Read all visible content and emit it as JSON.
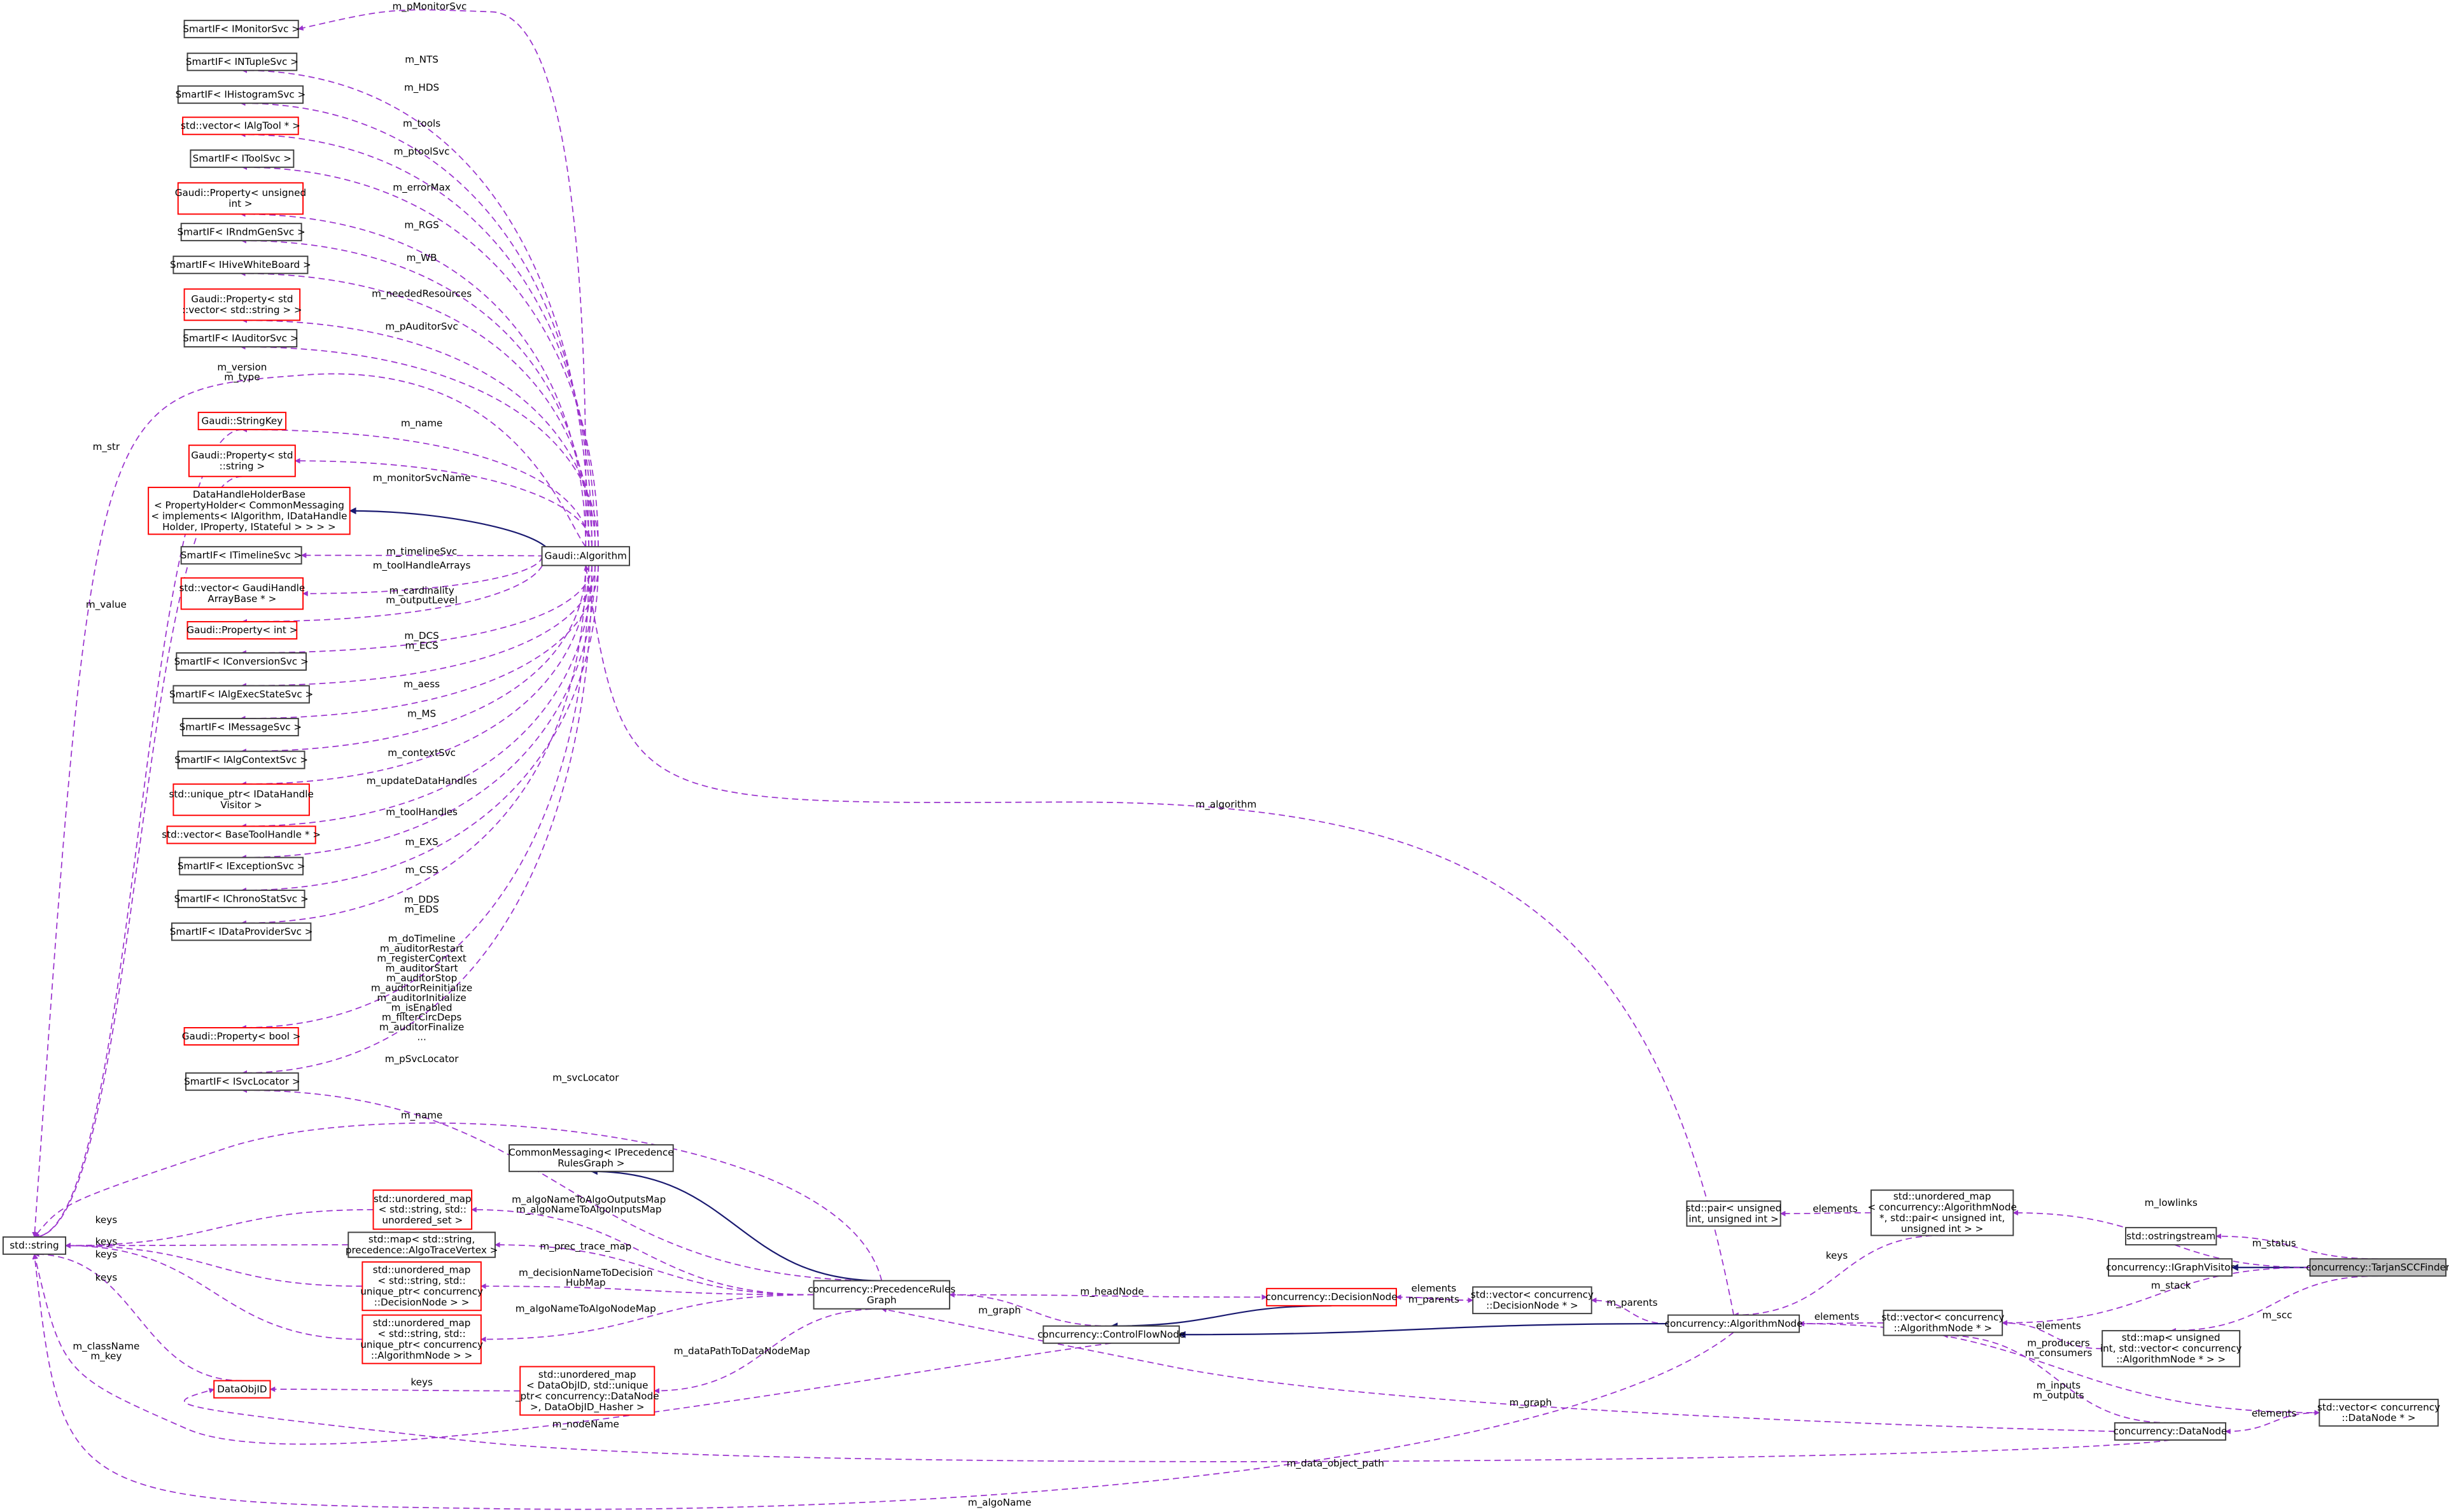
{
  "colors": {
    "member_edge": "#9a32cd",
    "inherit_edge": "#191970",
    "undocumented_border": "#ff0000",
    "documented_border": "#404040",
    "focus_fill": "#bfbfbf"
  },
  "nodes": [
    {
      "id": "mon",
      "lines": [
        "SmartIF< IMonitorSvc >"
      ],
      "style": "black"
    },
    {
      "id": "ntuple",
      "lines": [
        "SmartIF< INTupleSvc >"
      ],
      "style": "black"
    },
    {
      "id": "hist",
      "lines": [
        "SmartIF< IHistogramSvc >"
      ],
      "style": "black"
    },
    {
      "id": "algtool",
      "lines": [
        "std::vector< IAlgTool * >"
      ],
      "style": "red"
    },
    {
      "id": "toolsvc",
      "lines": [
        "SmartIF< IToolSvc >"
      ],
      "style": "black"
    },
    {
      "id": "propuint",
      "lines": [
        "Gaudi::Property< unsigned",
        "int >"
      ],
      "style": "red"
    },
    {
      "id": "rndm",
      "lines": [
        "SmartIF< IRndmGenSvc >"
      ],
      "style": "black"
    },
    {
      "id": "hive",
      "lines": [
        "SmartIF< IHiveWhiteBoard >"
      ],
      "style": "black"
    },
    {
      "id": "propvec",
      "lines": [
        "Gaudi::Property< std",
        "::vector< std::string > >"
      ],
      "style": "red"
    },
    {
      "id": "auditor",
      "lines": [
        "SmartIF< IAuditorSvc >"
      ],
      "style": "black"
    },
    {
      "id": "strkey",
      "lines": [
        "Gaudi::StringKey"
      ],
      "style": "red"
    },
    {
      "id": "propstr",
      "lines": [
        "Gaudi::Property< std",
        "::string >"
      ],
      "style": "red"
    },
    {
      "id": "dhhb",
      "lines": [
        "DataHandleHolderBase",
        "< PropertyHolder< CommonMessaging",
        "< implements< IAlgorithm, IDataHandle",
        "Holder, IProperty, IStateful > > > >"
      ],
      "style": "red"
    },
    {
      "id": "timeline",
      "lines": [
        "SmartIF< ITimelineSvc >"
      ],
      "style": "black"
    },
    {
      "id": "gha",
      "lines": [
        "std::vector< GaudiHandle",
        "ArrayBase * >"
      ],
      "style": "red"
    },
    {
      "id": "propint",
      "lines": [
        "Gaudi::Property< int >"
      ],
      "style": "red"
    },
    {
      "id": "conv",
      "lines": [
        "SmartIF< IConversionSvc >"
      ],
      "style": "black"
    },
    {
      "id": "execstate",
      "lines": [
        "SmartIF< IAlgExecStateSvc >"
      ],
      "style": "black"
    },
    {
      "id": "msg",
      "lines": [
        "SmartIF< IMessageSvc >"
      ],
      "style": "black"
    },
    {
      "id": "ctx",
      "lines": [
        "SmartIF< IAlgContextSvc >"
      ],
      "style": "black"
    },
    {
      "id": "dhv",
      "lines": [
        "std::unique_ptr< IDataHandle",
        "Visitor >"
      ],
      "style": "red"
    },
    {
      "id": "bth",
      "lines": [
        "std::vector< BaseToolHandle * >"
      ],
      "style": "red"
    },
    {
      "id": "exc",
      "lines": [
        "SmartIF< IExceptionSvc >"
      ],
      "style": "black"
    },
    {
      "id": "chrono",
      "lines": [
        "SmartIF< IChronoStatSvc >"
      ],
      "style": "black"
    },
    {
      "id": "dps",
      "lines": [
        "SmartIF< IDataProviderSvc >"
      ],
      "style": "black"
    },
    {
      "id": "propbool",
      "lines": [
        "Gaudi::Property< bool >"
      ],
      "style": "red"
    },
    {
      "id": "svcloc",
      "lines": [
        "SmartIF< ISvcLocator >"
      ],
      "style": "black"
    },
    {
      "id": "ga",
      "lines": [
        "Gaudi::Algorithm"
      ],
      "style": "black"
    },
    {
      "id": "string",
      "lines": [
        "std::string"
      ],
      "style": "black"
    },
    {
      "id": "cm",
      "lines": [
        "CommonMessaging< IPrecedence",
        "RulesGraph >"
      ],
      "style": "black"
    },
    {
      "id": "uset",
      "lines": [
        "std::unordered_map",
        "< std::string, std::",
        "unordered_set >"
      ],
      "style": "red"
    },
    {
      "id": "trace",
      "lines": [
        "std::map< std::string,",
        "precedence::AlgoTraceVertex >"
      ],
      "style": "black"
    },
    {
      "id": "decmap",
      "lines": [
        "std::unordered_map",
        "< std::string, std::",
        "unique_ptr< concurrency",
        "::DecisionNode > >"
      ],
      "style": "red"
    },
    {
      "id": "algmap",
      "lines": [
        "std::unordered_map",
        "< std::string, std::",
        "unique_ptr< concurrency",
        "::AlgorithmNode > >"
      ],
      "style": "red"
    },
    {
      "id": "dataobjid",
      "lines": [
        "DataObjID"
      ],
      "style": "red"
    },
    {
      "id": "domap",
      "lines": [
        "std::unordered_map",
        "< DataObjID, std::unique",
        "_ptr< concurrency::DataNode",
        ">, DataObjID_Hasher >"
      ],
      "style": "red"
    },
    {
      "id": "prg",
      "lines": [
        "concurrency::PrecedenceRules",
        "Graph"
      ],
      "style": "black"
    },
    {
      "id": "decnode",
      "lines": [
        "concurrency::DecisionNode"
      ],
      "style": "red"
    },
    {
      "id": "decvec",
      "lines": [
        "std::vector< concurrency",
        "::DecisionNode * >"
      ],
      "style": "black"
    },
    {
      "id": "cfn",
      "lines": [
        "concurrency::ControlFlowNode"
      ],
      "style": "black"
    },
    {
      "id": "algnode",
      "lines": [
        "concurrency::AlgorithmNode"
      ],
      "style": "black"
    },
    {
      "id": "pair",
      "lines": [
        "std::pair< unsigned",
        "int, unsigned int >"
      ],
      "style": "black"
    },
    {
      "id": "umap",
      "lines": [
        "std::unordered_map",
        "< concurrency::AlgorithmNode",
        "*, std::pair< unsigned int,",
        "unsigned int > >"
      ],
      "style": "black"
    },
    {
      "id": "oss",
      "lines": [
        "std::ostringstream"
      ],
      "style": "black"
    },
    {
      "id": "igv",
      "lines": [
        "concurrency::IGraphVisitor"
      ],
      "style": "black"
    },
    {
      "id": "tarjan",
      "lines": [
        "concurrency::TarjanSCCFinder"
      ],
      "style": "focus"
    },
    {
      "id": "algvec",
      "lines": [
        "std::vector< concurrency",
        "::AlgorithmNode * >"
      ],
      "style": "black"
    },
    {
      "id": "mapscc",
      "lines": [
        "std::map< unsigned",
        "int, std::vector< concurrency",
        "::AlgorithmNode * > >"
      ],
      "style": "black"
    },
    {
      "id": "dnvec",
      "lines": [
        "std::vector< concurrency",
        "::DataNode * >"
      ],
      "style": "black"
    },
    {
      "id": "datanode",
      "lines": [
        "concurrency::DataNode"
      ],
      "style": "black"
    }
  ],
  "edges": [
    {
      "from": "ga",
      "to": "mon",
      "kind": "member",
      "label": [
        "m_pMonitorSvc"
      ]
    },
    {
      "from": "ga",
      "to": "ntuple",
      "kind": "member",
      "label": [
        "m_NTS"
      ]
    },
    {
      "from": "ga",
      "to": "hist",
      "kind": "member",
      "label": [
        "m_HDS"
      ]
    },
    {
      "from": "ga",
      "to": "algtool",
      "kind": "member",
      "label": [
        "m_tools"
      ]
    },
    {
      "from": "ga",
      "to": "toolsvc",
      "kind": "member",
      "label": [
        "m_ptoolSvc"
      ]
    },
    {
      "from": "ga",
      "to": "propuint",
      "kind": "member",
      "label": [
        "m_errorMax"
      ]
    },
    {
      "from": "ga",
      "to": "rndm",
      "kind": "member",
      "label": [
        "m_RGS"
      ]
    },
    {
      "from": "ga",
      "to": "hive",
      "kind": "member",
      "label": [
        "m_WB"
      ]
    },
    {
      "from": "ga",
      "to": "propvec",
      "kind": "member",
      "label": [
        "m_neededResources"
      ]
    },
    {
      "from": "ga",
      "to": "auditor",
      "kind": "member",
      "label": [
        "m_pAuditorSvc"
      ]
    },
    {
      "from": "ga",
      "to": "string",
      "kind": "member",
      "label": [
        "m_version",
        "m_type"
      ]
    },
    {
      "from": "ga",
      "to": "strkey",
      "kind": "member",
      "label": [
        "m_name"
      ]
    },
    {
      "from": "ga",
      "to": "propstr",
      "kind": "member",
      "label": [
        "m_monitorSvcName"
      ]
    },
    {
      "from": "ga",
      "to": "dhhb",
      "kind": "inherit",
      "label": []
    },
    {
      "from": "ga",
      "to": "timeline",
      "kind": "member",
      "label": [
        "m_timelineSvc"
      ]
    },
    {
      "from": "ga",
      "to": "gha",
      "kind": "member",
      "label": [
        "m_toolHandleArrays"
      ]
    },
    {
      "from": "ga",
      "to": "propint",
      "kind": "member",
      "label": [
        "m_cardinality",
        "m_outputLevel"
      ]
    },
    {
      "from": "ga",
      "to": "conv",
      "kind": "member",
      "label": [
        "m_DCS",
        "m_ECS"
      ]
    },
    {
      "from": "ga",
      "to": "execstate",
      "kind": "member",
      "label": [
        "m_aess"
      ]
    },
    {
      "from": "ga",
      "to": "msg",
      "kind": "member",
      "label": [
        "m_MS"
      ]
    },
    {
      "from": "ga",
      "to": "ctx",
      "kind": "member",
      "label": [
        "m_contextSvc"
      ]
    },
    {
      "from": "ga",
      "to": "dhv",
      "kind": "member",
      "label": [
        "m_updateDataHandles"
      ]
    },
    {
      "from": "ga",
      "to": "bth",
      "kind": "member",
      "label": [
        "m_toolHandles"
      ]
    },
    {
      "from": "ga",
      "to": "exc",
      "kind": "member",
      "label": [
        "m_EXS"
      ]
    },
    {
      "from": "ga",
      "to": "chrono",
      "kind": "member",
      "label": [
        "m_CSS"
      ]
    },
    {
      "from": "ga",
      "to": "dps",
      "kind": "member",
      "label": [
        "m_DDS",
        "m_EDS"
      ]
    },
    {
      "from": "ga",
      "to": "propbool",
      "kind": "member",
      "label": [
        "m_doTimeline",
        "m_auditorRestart",
        "m_registerContext",
        "m_auditorStart",
        "m_auditorStop",
        "m_auditorReinitialize",
        "m_auditorInitialize",
        "m_isEnabled",
        "m_filterCircDeps",
        "m_auditorFinalize",
        "..."
      ]
    },
    {
      "from": "ga",
      "to": "svcloc",
      "kind": "member",
      "label": [
        "m_pSvcLocator"
      ]
    },
    {
      "from": "strkey",
      "to": "string",
      "kind": "member",
      "label": [
        "m_str"
      ]
    },
    {
      "from": "propstr",
      "to": "string",
      "kind": "member",
      "label": [
        "m_value"
      ]
    },
    {
      "from": "prg",
      "to": "svcloc",
      "kind": "member",
      "label": [
        "m_svcLocator"
      ]
    },
    {
      "from": "prg",
      "to": "string",
      "kind": "member",
      "label": [
        "m_name"
      ]
    },
    {
      "from": "prg",
      "to": "cm",
      "kind": "inherit",
      "label": []
    },
    {
      "from": "prg",
      "to": "uset",
      "kind": "member",
      "label": [
        "m_algoNameToAlgoOutputsMap",
        "m_algoNameToAlgoInputsMap"
      ]
    },
    {
      "from": "uset",
      "to": "string",
      "kind": "member",
      "label": [
        "keys"
      ]
    },
    {
      "from": "trace",
      "to": "string",
      "kind": "member",
      "label": [
        "keys"
      ]
    },
    {
      "from": "decmap",
      "to": "string",
      "kind": "member",
      "label": [
        "keys"
      ]
    },
    {
      "from": "algmap",
      "to": "string",
      "kind": "member",
      "label": [
        "keys"
      ]
    },
    {
      "from": "prg",
      "to": "trace",
      "kind": "member",
      "label": [
        "m_prec_trace_map"
      ]
    },
    {
      "from": "prg",
      "to": "decmap",
      "kind": "member",
      "label": [
        "m_decisionNameToDecision",
        "HubMap"
      ]
    },
    {
      "from": "prg",
      "to": "algmap",
      "kind": "member",
      "label": [
        "m_algoNameToAlgoNodeMap"
      ]
    },
    {
      "from": "prg",
      "to": "domap",
      "kind": "member",
      "label": [
        "m_dataPathToDataNodeMap"
      ]
    },
    {
      "from": "domap",
      "to": "dataobjid",
      "kind": "member",
      "label": [
        "keys"
      ]
    },
    {
      "from": "dataobjid",
      "to": "string",
      "kind": "member",
      "label": [
        "m_className",
        "m_key"
      ]
    },
    {
      "from": "cfn",
      "to": "string",
      "kind": "member",
      "label": [
        "m_nodeName"
      ]
    },
    {
      "from": "prg",
      "to": "decnode",
      "kind": "member",
      "label": [
        "m_headNode"
      ]
    },
    {
      "from": "decnode",
      "to": "cfn",
      "kind": "inherit",
      "label": []
    },
    {
      "from": "cfn",
      "to": "prg",
      "kind": "member",
      "label": [
        "m_graph"
      ]
    },
    {
      "from": "decvec",
      "to": "decnode",
      "kind": "member",
      "label": [
        "elements"
      ]
    },
    {
      "from": "decnode",
      "to": "decvec",
      "kind": "member",
      "label": [
        "m_parents"
      ]
    },
    {
      "from": "algnode",
      "to": "decvec",
      "kind": "member",
      "label": [
        "m_parents"
      ]
    },
    {
      "from": "algnode",
      "to": "cfn",
      "kind": "inherit",
      "label": []
    },
    {
      "from": "algnode",
      "to": "ga",
      "kind": "member",
      "label": [
        "m_algorithm"
      ]
    },
    {
      "from": "algnode",
      "to": "string",
      "kind": "member",
      "label": [
        "m_algoName"
      ]
    },
    {
      "from": "datanode",
      "to": "prg",
      "kind": "member",
      "label": [
        "m_graph"
      ]
    },
    {
      "from": "datanode",
      "to": "dataobjid",
      "kind": "member",
      "label": [
        "m_data_object_path"
      ]
    },
    {
      "from": "umap",
      "to": "pair",
      "kind": "member",
      "label": [
        "elements"
      ]
    },
    {
      "from": "umap",
      "to": "algnode",
      "kind": "member",
      "label": [
        "keys"
      ]
    },
    {
      "from": "algvec",
      "to": "algnode",
      "kind": "member",
      "label": [
        "elements"
      ]
    },
    {
      "from": "tarjan",
      "to": "umap",
      "kind": "member",
      "label": [
        "m_lowlinks"
      ]
    },
    {
      "from": "tarjan",
      "to": "oss",
      "kind": "member",
      "label": [
        "m_status"
      ]
    },
    {
      "from": "tarjan",
      "to": "igv",
      "kind": "inherit",
      "label": []
    },
    {
      "from": "tarjan",
      "to": "algvec",
      "kind": "member",
      "label": [
        "m_stack"
      ]
    },
    {
      "from": "tarjan",
      "to": "mapscc",
      "kind": "member",
      "label": [
        "m_scc"
      ]
    },
    {
      "from": "mapscc",
      "to": "algvec",
      "kind": "member",
      "label": [
        "elements"
      ]
    },
    {
      "from": "datanode",
      "to": "algvec",
      "kind": "member",
      "label": [
        "m_producers",
        "m_consumers"
      ]
    },
    {
      "from": "algnode",
      "to": "dnvec",
      "kind": "member",
      "label": [
        "m_inputs",
        "m_outputs"
      ]
    },
    {
      "from": "dnvec",
      "to": "datanode",
      "kind": "member",
      "label": [
        "elements"
      ]
    }
  ]
}
